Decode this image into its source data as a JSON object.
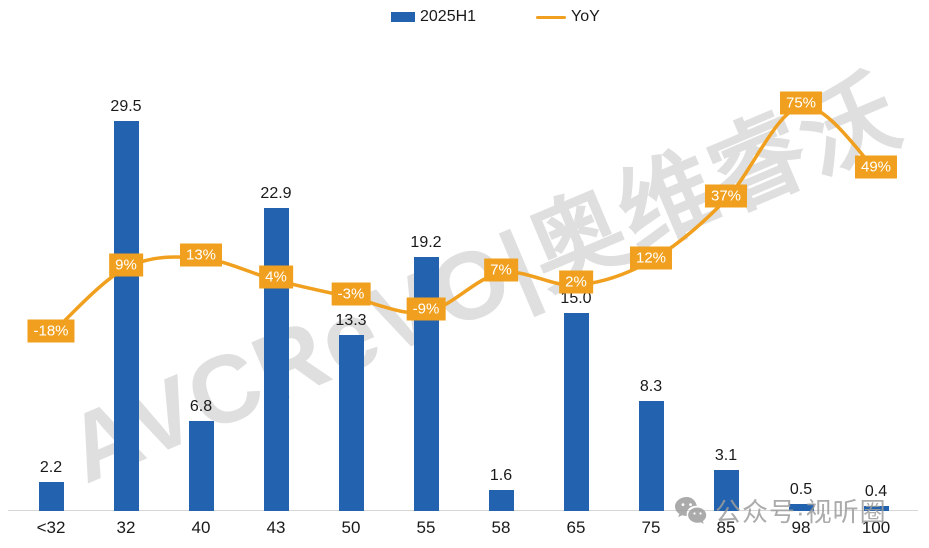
{
  "legend": {
    "items": [
      {
        "label": "2025H1",
        "swatch": "bar-swatch"
      },
      {
        "label": "YoY",
        "swatch": "line-swatch"
      }
    ]
  },
  "colors": {
    "bar": "#2362AE",
    "line": "#F0A01E",
    "label_box_bg": "#F0A01E",
    "label_box_text": "#FFFFFF",
    "axis_line": "#D6D6D6",
    "text": "#1A1A1A",
    "brand_watermark": "#B8B8B8",
    "wechat_watermark": "#9D9D9D"
  },
  "chart_data": {
    "type": "bar+line",
    "title": "",
    "xlabel": "",
    "ylabel": "",
    "grid": false,
    "legend_position": "top",
    "categories": [
      "<32",
      "32",
      "40",
      "43",
      "50",
      "55",
      "58",
      "65",
      "75",
      "85",
      "98",
      "100"
    ],
    "series": [
      {
        "name": "2025H1",
        "type": "bar",
        "values": [
          2.2,
          29.5,
          6.8,
          22.9,
          13.3,
          19.2,
          1.6,
          15.0,
          8.3,
          3.1,
          0.5,
          0.4
        ],
        "value_decimals": 1
      },
      {
        "name": "YoY",
        "type": "line",
        "unit": "%",
        "values": [
          -18,
          9,
          13,
          4,
          -3,
          -9,
          7,
          2,
          12,
          37,
          75,
          49
        ]
      }
    ]
  },
  "watermarks": {
    "brand": "AVCReVO|奥维睿沃",
    "wechat": "公众号·视听圈"
  }
}
